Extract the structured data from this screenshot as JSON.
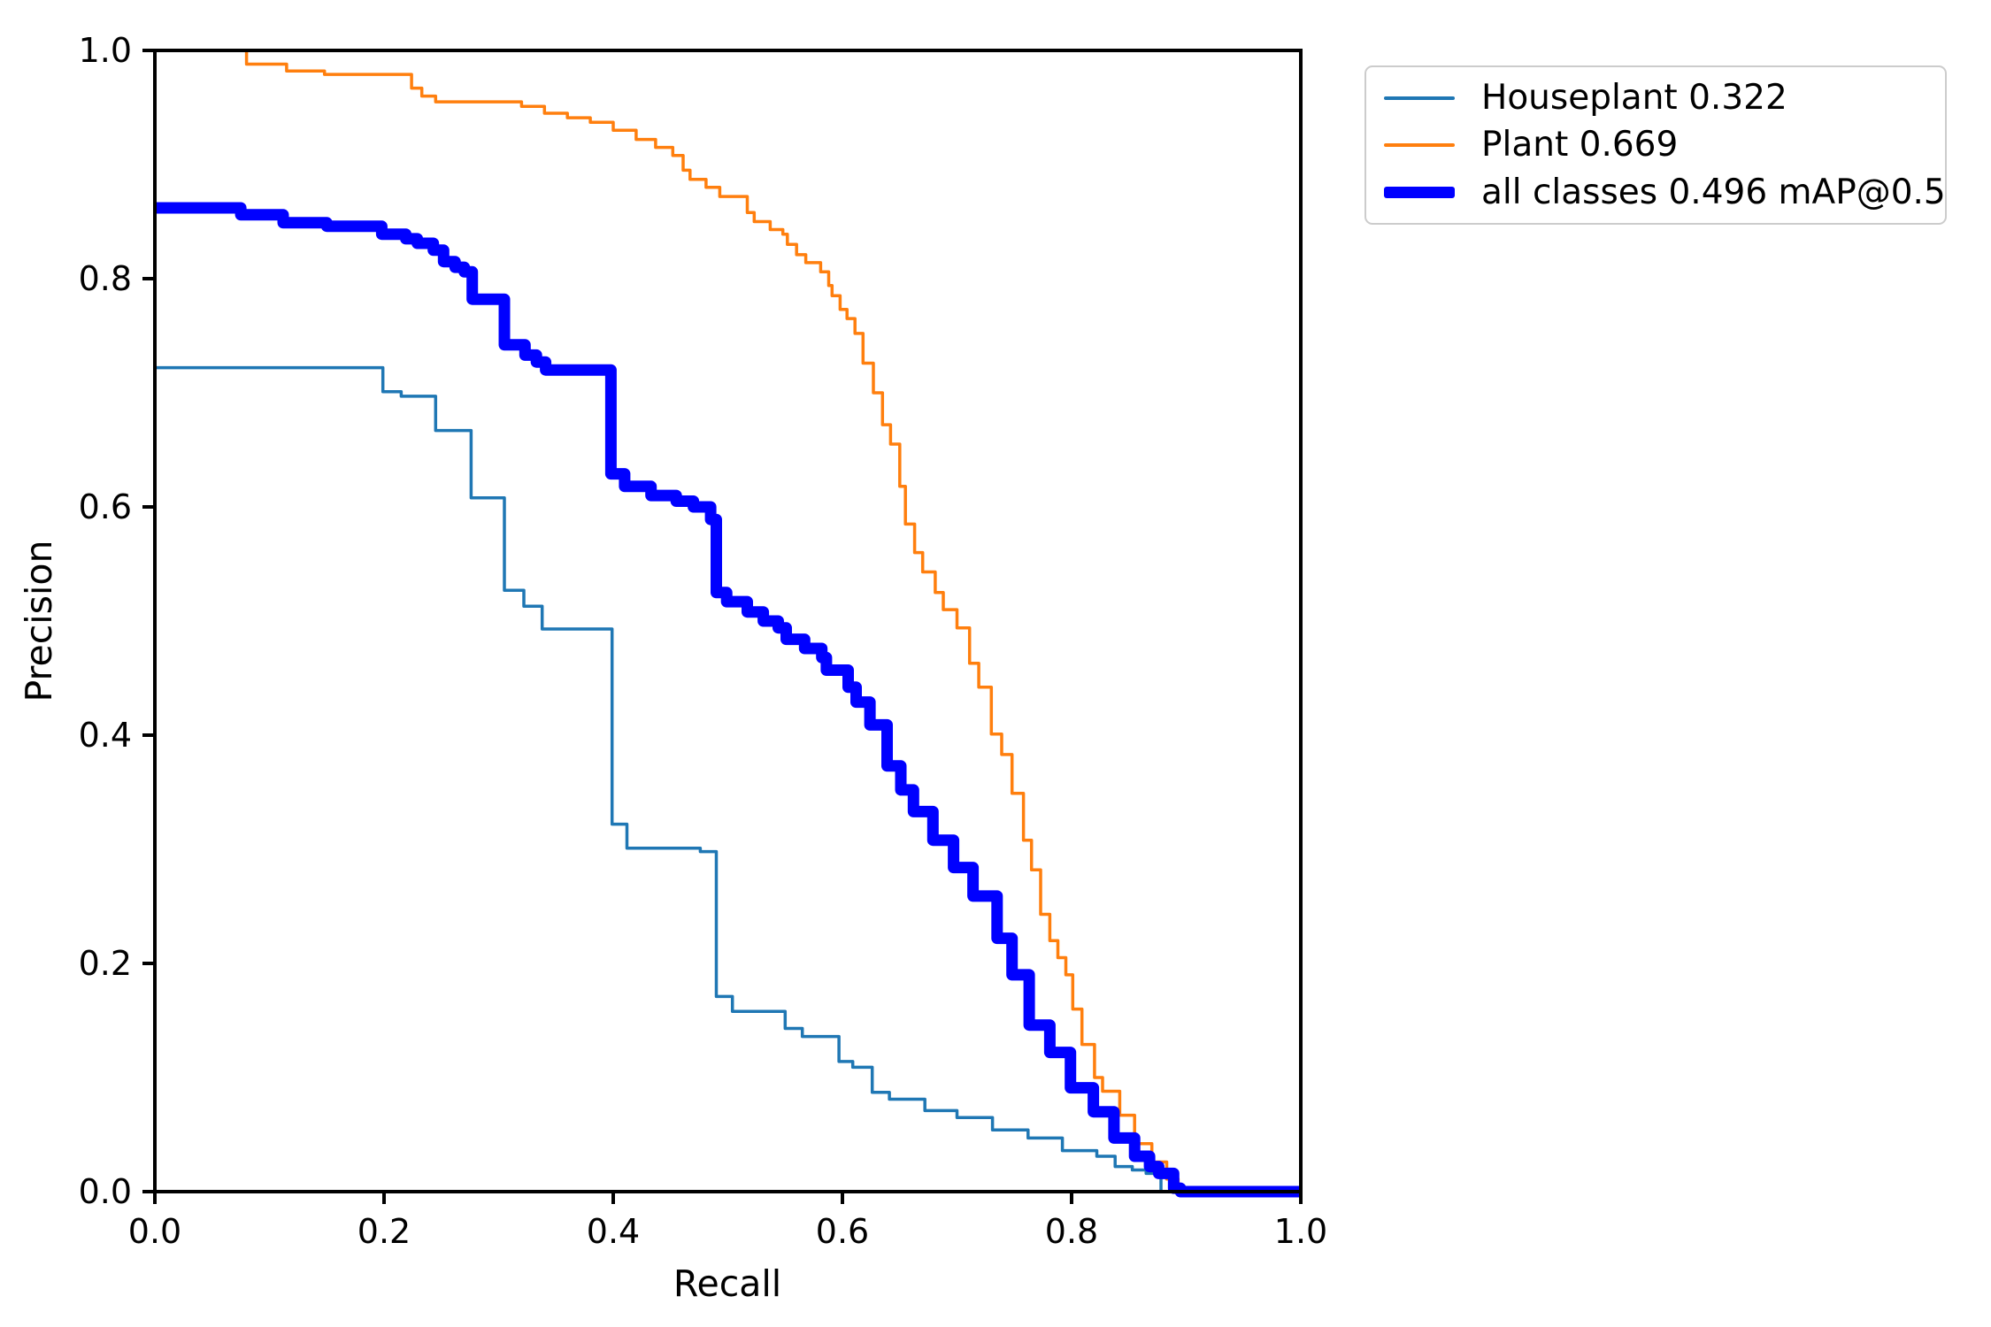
{
  "chart_data": {
    "type": "line",
    "subtype": "precision-recall-curve",
    "title": "",
    "xlabel": "Recall",
    "ylabel": "Precision",
    "xlim": [
      0.0,
      1.0
    ],
    "ylim": [
      0.0,
      1.0
    ],
    "xticks": [
      0.0,
      0.2,
      0.4,
      0.6,
      0.8,
      1.0
    ],
    "yticks": [
      0.0,
      0.2,
      0.4,
      0.6,
      0.8,
      1.0
    ],
    "grid": false,
    "legend_position": "outside-top-right",
    "step_mode": "post",
    "spine_color": "#000000",
    "series": [
      {
        "name": "Houseplant",
        "legend_label": "Houseplant 0.322",
        "ap": 0.322,
        "color": "#1f77b4",
        "line_width": 3.5,
        "points": [
          [
            0.0,
            0.722
          ],
          [
            0.199,
            0.701
          ],
          [
            0.215,
            0.697
          ],
          [
            0.245,
            0.667
          ],
          [
            0.276,
            0.608
          ],
          [
            0.305,
            0.527
          ],
          [
            0.322,
            0.513
          ],
          [
            0.338,
            0.493
          ],
          [
            0.399,
            0.322
          ],
          [
            0.412,
            0.301
          ],
          [
            0.476,
            0.298
          ],
          [
            0.49,
            0.171
          ],
          [
            0.504,
            0.158
          ],
          [
            0.55,
            0.143
          ],
          [
            0.565,
            0.136
          ],
          [
            0.597,
            0.114
          ],
          [
            0.609,
            0.109
          ],
          [
            0.626,
            0.087
          ],
          [
            0.641,
            0.081
          ],
          [
            0.672,
            0.071
          ],
          [
            0.7,
            0.065
          ],
          [
            0.731,
            0.054
          ],
          [
            0.762,
            0.047
          ],
          [
            0.792,
            0.036
          ],
          [
            0.822,
            0.031
          ],
          [
            0.838,
            0.022
          ],
          [
            0.853,
            0.019
          ],
          [
            0.865,
            0.016
          ],
          [
            0.878,
            0.0
          ]
        ]
      },
      {
        "name": "Plant",
        "legend_label": "Plant 0.669",
        "ap": 0.669,
        "color": "#ff7f0e",
        "line_width": 3.5,
        "points": [
          [
            0.075,
            1.0
          ],
          [
            0.08,
            0.988
          ],
          [
            0.115,
            0.982
          ],
          [
            0.148,
            0.979
          ],
          [
            0.224,
            0.967
          ],
          [
            0.233,
            0.96
          ],
          [
            0.245,
            0.955
          ],
          [
            0.32,
            0.951
          ],
          [
            0.34,
            0.945
          ],
          [
            0.36,
            0.941
          ],
          [
            0.38,
            0.937
          ],
          [
            0.4,
            0.93
          ],
          [
            0.42,
            0.922
          ],
          [
            0.437,
            0.915
          ],
          [
            0.452,
            0.908
          ],
          [
            0.461,
            0.895
          ],
          [
            0.467,
            0.887
          ],
          [
            0.481,
            0.88
          ],
          [
            0.493,
            0.872
          ],
          [
            0.517,
            0.858
          ],
          [
            0.523,
            0.85
          ],
          [
            0.537,
            0.843
          ],
          [
            0.548,
            0.839
          ],
          [
            0.552,
            0.83
          ],
          [
            0.56,
            0.821
          ],
          [
            0.568,
            0.814
          ],
          [
            0.581,
            0.806
          ],
          [
            0.588,
            0.794
          ],
          [
            0.591,
            0.785
          ],
          [
            0.598,
            0.773
          ],
          [
            0.604,
            0.765
          ],
          [
            0.611,
            0.752
          ],
          [
            0.618,
            0.726
          ],
          [
            0.627,
            0.7
          ],
          [
            0.635,
            0.672
          ],
          [
            0.642,
            0.655
          ],
          [
            0.65,
            0.618
          ],
          [
            0.655,
            0.585
          ],
          [
            0.663,
            0.56
          ],
          [
            0.67,
            0.543
          ],
          [
            0.681,
            0.525
          ],
          [
            0.688,
            0.51
          ],
          [
            0.7,
            0.494
          ],
          [
            0.711,
            0.463
          ],
          [
            0.719,
            0.442
          ],
          [
            0.73,
            0.401
          ],
          [
            0.739,
            0.383
          ],
          [
            0.748,
            0.349
          ],
          [
            0.758,
            0.308
          ],
          [
            0.765,
            0.282
          ],
          [
            0.773,
            0.243
          ],
          [
            0.781,
            0.22
          ],
          [
            0.788,
            0.205
          ],
          [
            0.795,
            0.19
          ],
          [
            0.801,
            0.16
          ],
          [
            0.809,
            0.129
          ],
          [
            0.82,
            0.1
          ],
          [
            0.827,
            0.088
          ],
          [
            0.842,
            0.067
          ],
          [
            0.855,
            0.042
          ],
          [
            0.87,
            0.026
          ],
          [
            0.883,
            0.011
          ],
          [
            0.893,
            0.0
          ]
        ]
      },
      {
        "name": "all classes",
        "legend_label": "all classes 0.496 mAP@0.5",
        "map_at_0_5": 0.496,
        "color": "#0000ff",
        "line_width": 13,
        "points": [
          [
            0.0,
            0.862
          ],
          [
            0.075,
            0.856
          ],
          [
            0.112,
            0.849
          ],
          [
            0.15,
            0.846
          ],
          [
            0.198,
            0.839
          ],
          [
            0.219,
            0.835
          ],
          [
            0.229,
            0.831
          ],
          [
            0.243,
            0.825
          ],
          [
            0.252,
            0.815
          ],
          [
            0.262,
            0.81
          ],
          [
            0.27,
            0.806
          ],
          [
            0.277,
            0.782
          ],
          [
            0.305,
            0.742
          ],
          [
            0.323,
            0.733
          ],
          [
            0.333,
            0.727
          ],
          [
            0.341,
            0.72
          ],
          [
            0.398,
            0.629
          ],
          [
            0.41,
            0.618
          ],
          [
            0.433,
            0.61
          ],
          [
            0.455,
            0.605
          ],
          [
            0.47,
            0.6
          ],
          [
            0.485,
            0.589
          ],
          [
            0.49,
            0.525
          ],
          [
            0.499,
            0.517
          ],
          [
            0.517,
            0.508
          ],
          [
            0.531,
            0.5
          ],
          [
            0.544,
            0.494
          ],
          [
            0.551,
            0.484
          ],
          [
            0.567,
            0.476
          ],
          [
            0.582,
            0.468
          ],
          [
            0.586,
            0.457
          ],
          [
            0.605,
            0.442
          ],
          [
            0.612,
            0.429
          ],
          [
            0.624,
            0.409
          ],
          [
            0.639,
            0.373
          ],
          [
            0.651,
            0.352
          ],
          [
            0.662,
            0.333
          ],
          [
            0.679,
            0.308
          ],
          [
            0.697,
            0.284
          ],
          [
            0.714,
            0.259
          ],
          [
            0.735,
            0.222
          ],
          [
            0.748,
            0.19
          ],
          [
            0.763,
            0.146
          ],
          [
            0.781,
            0.122
          ],
          [
            0.799,
            0.091
          ],
          [
            0.819,
            0.07
          ],
          [
            0.837,
            0.047
          ],
          [
            0.855,
            0.031
          ],
          [
            0.868,
            0.022
          ],
          [
            0.876,
            0.016
          ],
          [
            0.889,
            0.003
          ],
          [
            0.895,
            0.0
          ],
          [
            1.0,
            0.0
          ]
        ]
      }
    ]
  }
}
